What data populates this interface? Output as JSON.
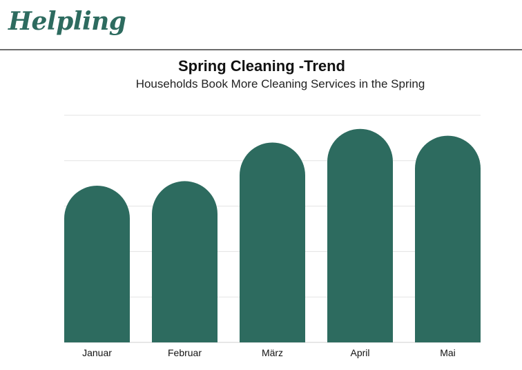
{
  "brand": {
    "logo_text": "Helpling",
    "color": "#2d6b5f"
  },
  "chart_data": {
    "type": "bar",
    "title": "Spring Cleaning -Trend",
    "subtitle": "Households Book More Cleaning Services in the Spring",
    "categories": [
      "Januar",
      "Februar",
      "März",
      "April",
      "Mai"
    ],
    "values": [
      3.45,
      3.55,
      4.4,
      4.7,
      4.55
    ],
    "ylim": [
      0,
      5
    ],
    "grid": true,
    "bar_color": "#2d6b5f",
    "grid_color": "#e3e3e3"
  }
}
